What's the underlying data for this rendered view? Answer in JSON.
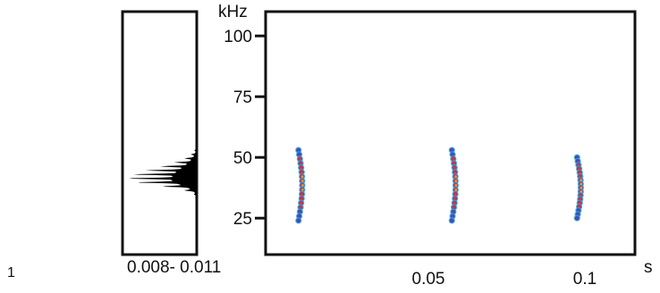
{
  "figure": {
    "panel_number": "1"
  },
  "chart_data": [
    {
      "type": "area",
      "role": "power-spectrum",
      "x_range_label": "0.008- 0.011",
      "ylim": [
        10,
        110
      ],
      "peak_frequency_khz": 41,
      "frequency_range_khz": [
        30,
        55
      ],
      "fill_color": "#000000"
    },
    {
      "type": "scatter",
      "role": "spectrogram",
      "xlabel": "s",
      "ylabel": "kHz",
      "xlim": [
        -0.002,
        0.116
      ],
      "ylim": [
        10,
        110
      ],
      "x_ticks": [
        {
          "value": 0.05,
          "label": "0.05"
        },
        {
          "value": 0.1,
          "label": "0.1"
        }
      ],
      "y_ticks": [
        {
          "value": 25,
          "label": "25"
        },
        {
          "value": 50,
          "label": "50"
        },
        {
          "value": 75,
          "label": "75"
        },
        {
          "value": 100,
          "label": "100"
        }
      ],
      "pulses": [
        {
          "time_s": 0.0085,
          "freq_start_khz": 53,
          "freq_end_khz": 24
        },
        {
          "time_s": 0.0575,
          "freq_start_khz": 53,
          "freq_end_khz": 24
        },
        {
          "time_s": 0.0975,
          "freq_start_khz": 50,
          "freq_end_khz": 25
        }
      ],
      "intensity_colors": {
        "low": "#3fa9c4",
        "mid": "#3b4fc4",
        "high": "#d4323a",
        "peak": "#f0a03c"
      }
    }
  ]
}
